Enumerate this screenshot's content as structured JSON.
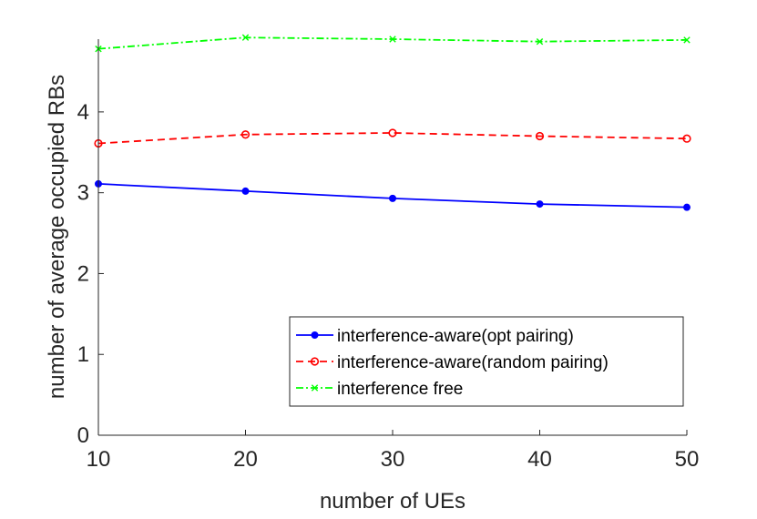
{
  "chart_data": {
    "type": "line",
    "title": "",
    "xlabel": "number of UEs",
    "ylabel": "number of average occupied RBs",
    "xlim": [
      10,
      50
    ],
    "ylim": [
      0,
      4.9
    ],
    "x_ticks": [
      10,
      20,
      30,
      40,
      50
    ],
    "y_ticks": [
      0,
      1,
      2,
      3,
      4
    ],
    "grid": false,
    "legend_position": "bottom-right",
    "x": [
      10,
      20,
      30,
      40,
      50
    ],
    "series": [
      {
        "name": "interference-aware(opt pairing)",
        "values": [
          3.11,
          3.02,
          2.93,
          2.86,
          2.82
        ],
        "color": "#0000ff",
        "line_style": "solid",
        "marker": "dot"
      },
      {
        "name": "interference-aware(random pairing)",
        "values": [
          3.61,
          3.72,
          3.74,
          3.7,
          3.67
        ],
        "color": "#ff0000",
        "line_style": "dashed",
        "marker": "circle"
      },
      {
        "name": "interference free",
        "values": [
          4.78,
          4.92,
          4.9,
          4.87,
          4.89
        ],
        "color": "#00ff00",
        "line_style": "dashdot",
        "marker": "x"
      }
    ]
  }
}
